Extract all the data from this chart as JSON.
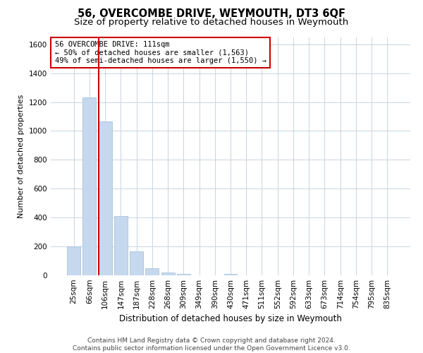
{
  "title": "56, OVERCOMBE DRIVE, WEYMOUTH, DT3 6QF",
  "subtitle": "Size of property relative to detached houses in Weymouth",
  "xlabel": "Distribution of detached houses by size in Weymouth",
  "ylabel": "Number of detached properties",
  "categories": [
    "25sqm",
    "66sqm",
    "106sqm",
    "147sqm",
    "187sqm",
    "228sqm",
    "268sqm",
    "309sqm",
    "349sqm",
    "390sqm",
    "430sqm",
    "471sqm",
    "511sqm",
    "552sqm",
    "592sqm",
    "633sqm",
    "673sqm",
    "714sqm",
    "754sqm",
    "795sqm",
    "835sqm"
  ],
  "values": [
    200,
    1230,
    1065,
    410,
    165,
    50,
    22,
    12,
    0,
    0,
    12,
    0,
    0,
    0,
    0,
    0,
    0,
    0,
    0,
    0,
    0
  ],
  "bar_color": "#c5d8ed",
  "bar_edgecolor": "#a8c4dc",
  "vline_color": "#cc0000",
  "vline_x_idx": 2,
  "annotation_line1": "56 OVERCOMBE DRIVE: 111sqm",
  "annotation_line2": "← 50% of detached houses are smaller (1,563)",
  "annotation_line3": "49% of semi-detached houses are larger (1,550) →",
  "annotation_box_facecolor": "#ffffff",
  "annotation_box_edgecolor": "#cc0000",
  "ylim": [
    0,
    1650
  ],
  "yticks": [
    0,
    200,
    400,
    600,
    800,
    1000,
    1200,
    1400,
    1600
  ],
  "background_color": "#ffffff",
  "grid_color": "#c8d4e0",
  "footer": "Contains HM Land Registry data © Crown copyright and database right 2024.\nContains public sector information licensed under the Open Government Licence v3.0.",
  "title_fontsize": 10.5,
  "subtitle_fontsize": 9.5,
  "xlabel_fontsize": 8.5,
  "ylabel_fontsize": 8,
  "tick_fontsize": 7.5,
  "annotation_fontsize": 7.5,
  "footer_fontsize": 6.5
}
